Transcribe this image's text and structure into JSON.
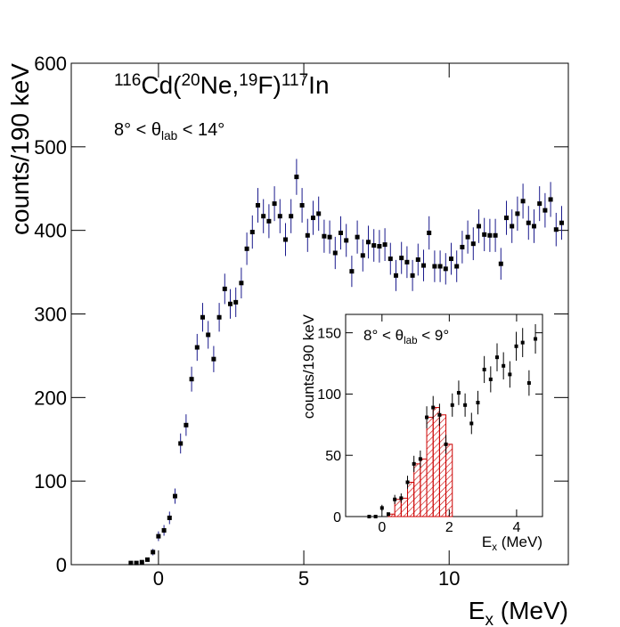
{
  "chart_data": [
    {
      "type": "scatter",
      "title": [
        {
          "text": "116",
          "style": "sup"
        },
        {
          "text": "Cd("
        },
        {
          "text": "20",
          "style": "sup"
        },
        {
          "text": "Ne,"
        },
        {
          "text": "19",
          "style": "sup"
        },
        {
          "text": "F)"
        },
        {
          "text": "117",
          "style": "sup"
        },
        {
          "text": "In"
        }
      ],
      "annotation": [
        {
          "text": "8° < θ"
        },
        {
          "text": "lab",
          "style": "sub"
        },
        {
          "text": " < 14°"
        }
      ],
      "xlabel": [
        {
          "text": "E"
        },
        {
          "text": "x",
          "style": "sub"
        },
        {
          "text": " (MeV)"
        }
      ],
      "ylabel": "counts/190 keV",
      "xlim": [
        -3,
        14.1
      ],
      "ylim": [
        0,
        600
      ],
      "xticks": [
        0,
        5,
        10
      ],
      "yticks": [
        0,
        100,
        200,
        300,
        400,
        500,
        600
      ],
      "color": "#000000",
      "error_color": "#1a1a8c",
      "x": [
        -0.95,
        -0.76,
        -0.57,
        -0.38,
        -0.19,
        0,
        0.19,
        0.38,
        0.57,
        0.76,
        0.95,
        1.14,
        1.33,
        1.52,
        1.71,
        1.9,
        2.09,
        2.28,
        2.47,
        2.66,
        2.85,
        3.04,
        3.23,
        3.42,
        3.61,
        3.8,
        3.99,
        4.18,
        4.37,
        4.56,
        4.75,
        4.94,
        5.13,
        5.32,
        5.51,
        5.7,
        5.89,
        6.08,
        6.27,
        6.46,
        6.65,
        6.84,
        7.03,
        7.22,
        7.41,
        7.6,
        7.79,
        7.98,
        8.17,
        8.36,
        8.55,
        8.74,
        8.93,
        9.12,
        9.31,
        9.5,
        9.69,
        9.88,
        10.07,
        10.26,
        10.45,
        10.64,
        10.83,
        11.02,
        11.21,
        11.4,
        11.59,
        11.78,
        11.97,
        12.16,
        12.35,
        12.54,
        12.73,
        12.92,
        13.11,
        13.3,
        13.49,
        13.68,
        13.87
      ],
      "values": [
        2,
        2,
        3,
        6,
        15,
        34,
        41,
        56,
        82,
        145,
        167,
        222,
        260,
        296,
        275,
        246,
        296,
        330,
        312,
        314,
        337,
        378,
        398,
        430,
        417,
        411,
        432,
        417,
        389,
        417,
        464,
        430,
        394,
        415,
        420,
        393,
        392,
        373,
        397,
        388,
        351,
        392,
        370,
        386,
        382,
        381,
        383,
        366,
        346,
        367,
        362,
        346,
        365,
        358,
        397,
        357,
        357,
        354,
        366,
        357,
        380,
        392,
        384,
        405,
        395,
        394,
        394,
        360,
        415,
        405,
        420,
        435,
        409,
        405,
        432,
        424,
        437,
        401,
        409
      ],
      "errors": [
        1.4,
        1.4,
        1.7,
        2.4,
        3.9,
        5.8,
        6.4,
        7.5,
        9.1,
        12,
        12.9,
        14.9,
        16.1,
        17.2,
        16.6,
        15.7,
        17.2,
        18.2,
        17.7,
        17.7,
        18.4,
        19.4,
        19.9,
        20.7,
        20.4,
        20.3,
        20.8,
        20.4,
        19.7,
        20.4,
        21.5,
        20.7,
        19.8,
        20.4,
        20.5,
        19.8,
        19.8,
        19.3,
        19.9,
        19.7,
        18.7,
        19.8,
        19.2,
        19.6,
        19.5,
        19.5,
        19.6,
        19.1,
        18.6,
        19.2,
        19,
        18.6,
        19.1,
        18.9,
        19.9,
        18.9,
        18.9,
        18.8,
        19.1,
        18.9,
        19.5,
        19.8,
        19.6,
        20.1,
        19.9,
        19.8,
        19.8,
        19,
        20.4,
        20.1,
        20.5,
        20.9,
        20.2,
        20.1,
        20.8,
        20.6,
        20.9,
        20,
        20.2
      ]
    },
    {
      "type": "scatter",
      "annotation": [
        {
          "text": "8° < θ"
        },
        {
          "text": "lab",
          "style": "sub"
        },
        {
          "text": " < 9°"
        }
      ],
      "xlabel": [
        {
          "text": "E"
        },
        {
          "text": "x",
          "style": "sub"
        },
        {
          "text": " (MeV)"
        }
      ],
      "ylabel": "counts/190 keV",
      "xlim": [
        -1.08,
        4.77
      ],
      "ylim": [
        0,
        165
      ],
      "xticks": [
        0,
        2,
        4
      ],
      "yticks": [
        0,
        50,
        100,
        150
      ],
      "color": "#000000",
      "error_color": "#000000",
      "x": [
        -0.38,
        -0.19,
        0,
        0.19,
        0.38,
        0.57,
        0.76,
        0.95,
        1.14,
        1.33,
        1.52,
        1.71,
        1.9,
        2.09,
        2.28,
        2.47,
        2.66,
        2.85,
        3.04,
        3.23,
        3.42,
        3.61,
        3.8,
        3.99,
        4.18,
        4.37,
        4.56
      ],
      "values": [
        0,
        0,
        7,
        2,
        14,
        15,
        28,
        43,
        47,
        81,
        89,
        83,
        59,
        91,
        101,
        91,
        76,
        93,
        120,
        112,
        130,
        123,
        116,
        139,
        142,
        109,
        145
      ],
      "errors": [
        0,
        0,
        2.6,
        1.4,
        3.7,
        3.9,
        5.3,
        6.6,
        6.9,
        9,
        9.4,
        9.1,
        7.7,
        9.5,
        10,
        9.5,
        8.7,
        9.6,
        11,
        10.6,
        11.4,
        11.1,
        10.8,
        11.8,
        11.9,
        10.4,
        12
      ],
      "hist": {
        "color": "#cc0000",
        "bins": [
          0.19,
          0.38,
          0.57,
          0.76,
          0.95,
          1.14,
          1.33,
          1.52,
          1.71,
          1.9,
          2.09
        ],
        "values": [
          2,
          14,
          15,
          28,
          43,
          47,
          81,
          89,
          83,
          59
        ]
      }
    }
  ]
}
